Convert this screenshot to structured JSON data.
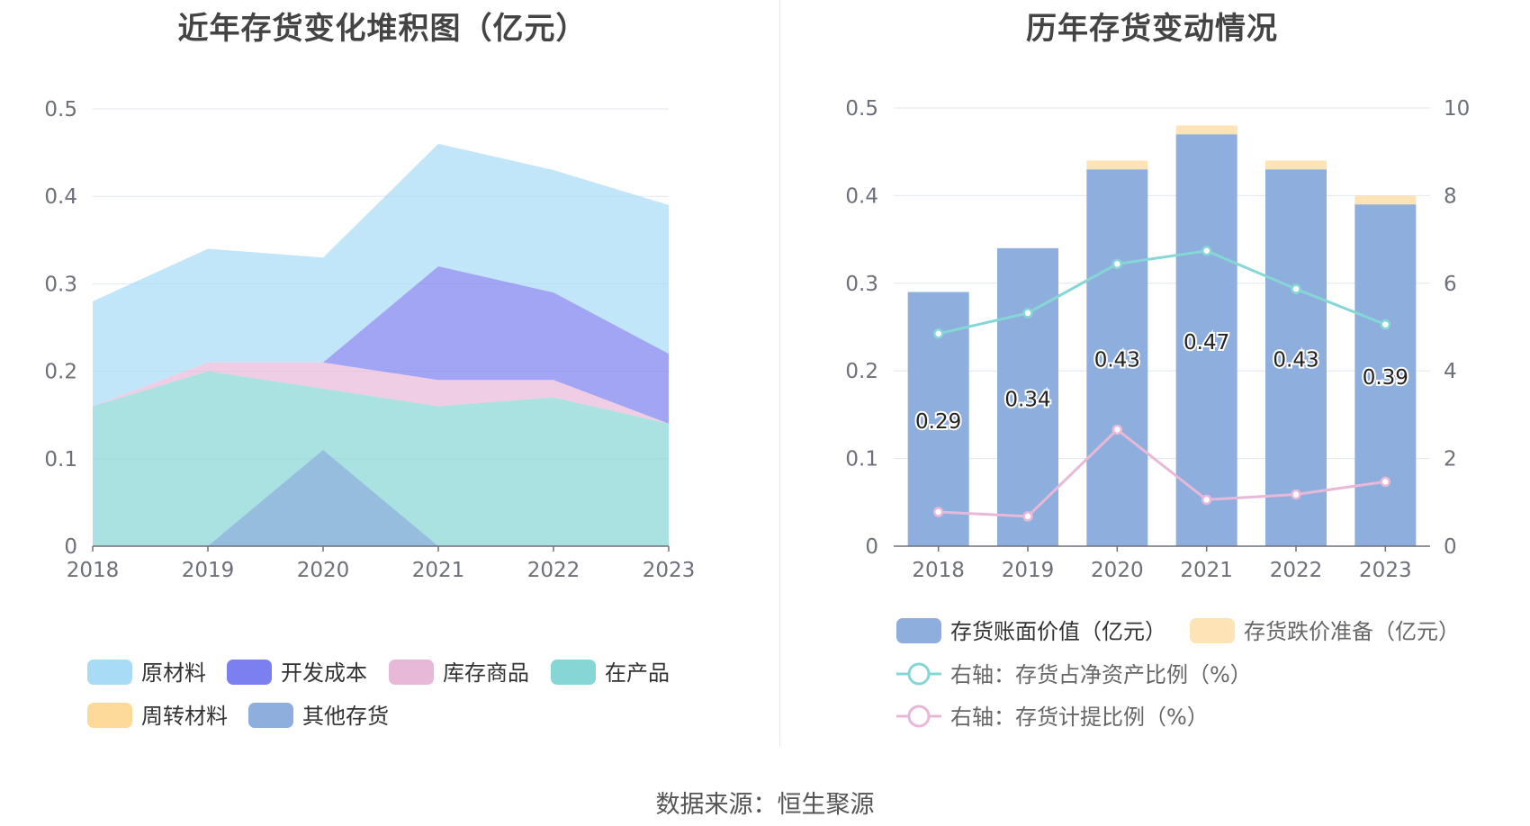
{
  "colors": {
    "raw_materials": "#a8dcf6",
    "development_cost": "#7b7ff0",
    "stock_goods": "#e8b8d8",
    "wip": "#86d6d6",
    "revolving": "#fdd99a",
    "other": "#8eaedd",
    "book_value_bar": "#8eaedd",
    "provision_bar": "#fde3b5",
    "ratio_line": "#86d6d6",
    "provision_line": "#e8b8d8",
    "grid": "#e0e6f1"
  },
  "chart_data": [
    {
      "type": "area",
      "title": "近年存货变化堆积图（亿元）",
      "categories": [
        "2018",
        "2019",
        "2020",
        "2021",
        "2022",
        "2023"
      ],
      "ylim": [
        0,
        0.5
      ],
      "yticks": [
        "0",
        "0.1",
        "0.2",
        "0.3",
        "0.4",
        "0.5"
      ],
      "stacked": true,
      "series": [
        {
          "name": "原材料",
          "values": [
            0.12,
            0.13,
            0.12,
            0.14,
            0.14,
            0.17
          ]
        },
        {
          "name": "开发成本",
          "values": [
            0,
            0,
            0,
            0.13,
            0.1,
            0.08
          ]
        },
        {
          "name": "库存商品",
          "values": [
            0,
            0.01,
            0.03,
            0.03,
            0.02,
            0
          ]
        },
        {
          "name": "在产品",
          "values": [
            0.16,
            0.2,
            0.18,
            0.16,
            0.17,
            0.14
          ]
        },
        {
          "name": "周转材料",
          "values": [
            0,
            0,
            0,
            0,
            0,
            0
          ]
        },
        {
          "name": "其他存货",
          "values": [
            0,
            0,
            0.11,
            0,
            0,
            0
          ]
        }
      ],
      "legend_position": "bottom",
      "grid": true
    },
    {
      "type": "bar",
      "title": "历年存货变动情况",
      "categories": [
        "2018",
        "2019",
        "2020",
        "2021",
        "2022",
        "2023"
      ],
      "ylim": [
        0,
        0.5
      ],
      "y2lim": [
        0,
        10
      ],
      "yticks": [
        "0",
        "0.1",
        "0.2",
        "0.3",
        "0.4",
        "0.5"
      ],
      "y2ticks": [
        "0",
        "2",
        "4",
        "6",
        "8",
        "10"
      ],
      "stacked": true,
      "series": [
        {
          "name": "存货账面价值（亿元）",
          "type": "bar",
          "values": [
            0.29,
            0.34,
            0.43,
            0.47,
            0.43,
            0.39
          ],
          "labels": [
            "0.29",
            "0.34",
            "0.43",
            "0.47",
            "0.43",
            "0.39"
          ]
        },
        {
          "name": "存货跌价准备（亿元）",
          "type": "bar",
          "values": [
            0,
            0,
            0.01,
            0.01,
            0.01,
            0.01
          ]
        },
        {
          "name": "右轴：存货占净资产比例（%）",
          "type": "line",
          "axis": "right",
          "values": [
            4.85,
            5.32,
            6.44,
            6.74,
            5.87,
            5.06
          ]
        },
        {
          "name": "右轴：存货计提比例（%）",
          "type": "line",
          "axis": "right",
          "values": [
            0.78,
            0.68,
            2.66,
            1.06,
            1.18,
            1.47
          ]
        }
      ],
      "legend_position": "bottom",
      "grid": true
    }
  ],
  "source": "数据来源：恒生聚源"
}
